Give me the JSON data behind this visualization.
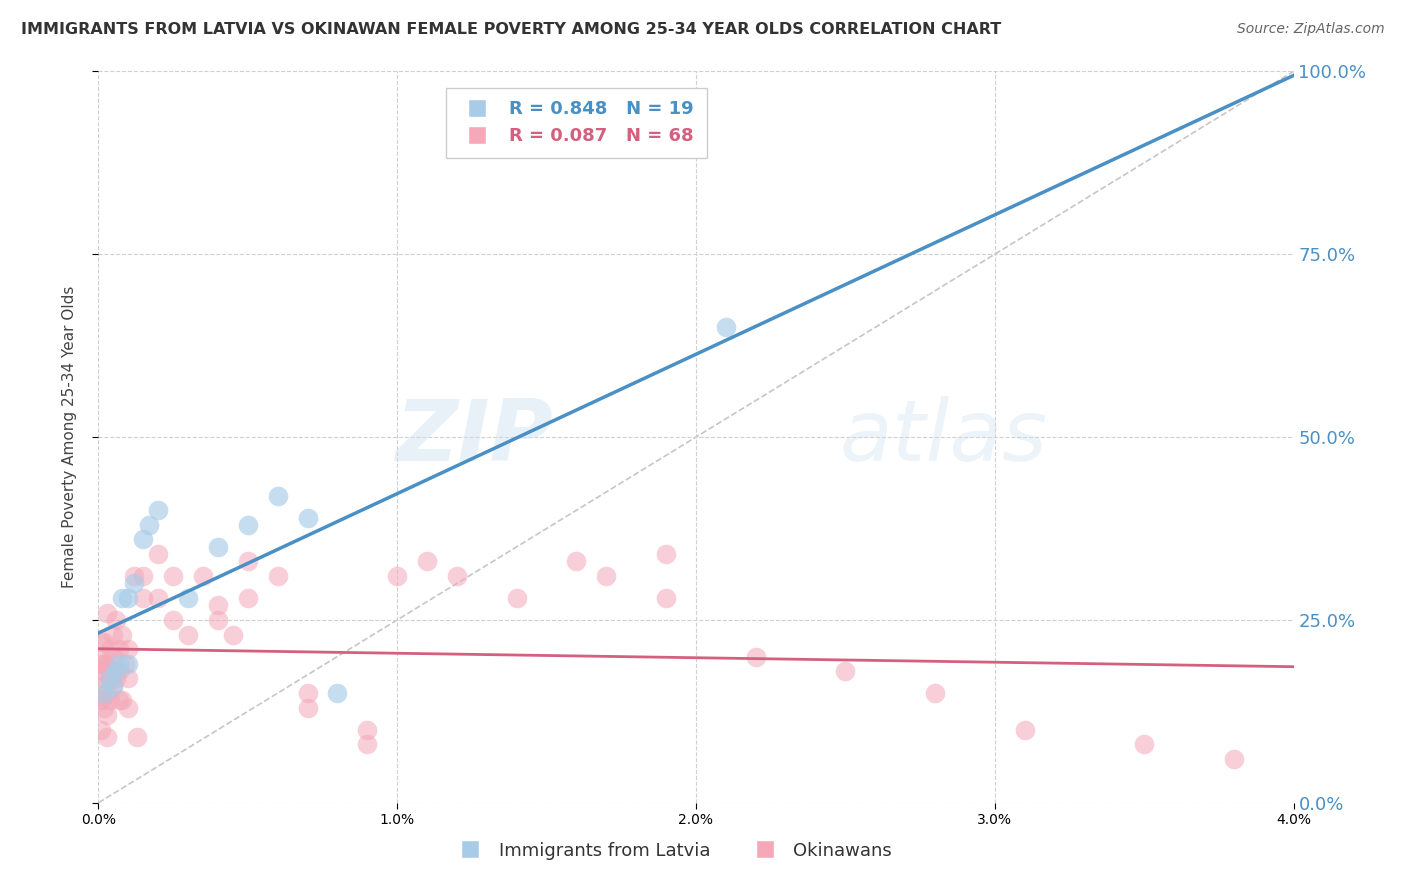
{
  "title": "IMMIGRANTS FROM LATVIA VS OKINAWAN FEMALE POVERTY AMONG 25-34 YEAR OLDS CORRELATION CHART",
  "source": "Source: ZipAtlas.com",
  "ylabel_left": "Female Poverty Among 25-34 Year Olds",
  "legend_label1": "Immigrants from Latvia",
  "legend_label2": "Okinawans",
  "R1": 0.848,
  "N1": 19,
  "R2": 0.087,
  "N2": 68,
  "xlim": [
    0.0,
    0.04
  ],
  "ylim": [
    0.0,
    1.0
  ],
  "xticks": [
    0.0,
    0.01,
    0.02,
    0.03,
    0.04
  ],
  "yticks_right": [
    0.0,
    0.25,
    0.5,
    0.75,
    1.0
  ],
  "color_blue": "#a8cce8",
  "color_pink": "#f4a8b8",
  "color_line_blue": "#4a90c4",
  "color_line_pink": "#d46080",
  "color_diag": "#c0c0c0",
  "color_right_axis": "#4a90c4",
  "color_title": "#333333",
  "color_source": "#666666",
  "watermark_zip": "ZIP",
  "watermark_atlas": "atlas",
  "blue_scatter_x": [
    0.0002,
    0.0004,
    0.0005,
    0.0006,
    0.0007,
    0.0008,
    0.001,
    0.001,
    0.0012,
    0.0015,
    0.0017,
    0.002,
    0.003,
    0.004,
    0.005,
    0.006,
    0.007,
    0.008,
    0.021
  ],
  "blue_scatter_y": [
    0.15,
    0.17,
    0.16,
    0.18,
    0.19,
    0.28,
    0.19,
    0.28,
    0.3,
    0.36,
    0.38,
    0.4,
    0.28,
    0.35,
    0.38,
    0.42,
    0.39,
    0.15,
    0.65
  ],
  "pink_scatter_x": [
    5e-05,
    5e-05,
    0.0001,
    0.0001,
    0.0001,
    0.0001,
    0.0001,
    0.00015,
    0.0002,
    0.0002,
    0.0002,
    0.0002,
    0.0003,
    0.0003,
    0.0003,
    0.0003,
    0.0003,
    0.0004,
    0.0004,
    0.0004,
    0.0005,
    0.0005,
    0.0005,
    0.0006,
    0.0006,
    0.0007,
    0.0007,
    0.0007,
    0.0008,
    0.0008,
    0.0009,
    0.001,
    0.001,
    0.001,
    0.0012,
    0.0013,
    0.0015,
    0.0015,
    0.002,
    0.002,
    0.0025,
    0.0025,
    0.003,
    0.0035,
    0.004,
    0.004,
    0.0045,
    0.005,
    0.005,
    0.006,
    0.007,
    0.007,
    0.009,
    0.009,
    0.01,
    0.011,
    0.012,
    0.014,
    0.016,
    0.017,
    0.019,
    0.019,
    0.022,
    0.025,
    0.028,
    0.031,
    0.035,
    0.038
  ],
  "pink_scatter_y": [
    0.19,
    0.14,
    0.2,
    0.17,
    0.14,
    0.1,
    0.22,
    0.18,
    0.19,
    0.16,
    0.13,
    0.22,
    0.26,
    0.19,
    0.15,
    0.12,
    0.09,
    0.21,
    0.17,
    0.14,
    0.23,
    0.2,
    0.16,
    0.25,
    0.17,
    0.21,
    0.18,
    0.14,
    0.23,
    0.14,
    0.19,
    0.21,
    0.17,
    0.13,
    0.31,
    0.09,
    0.31,
    0.28,
    0.34,
    0.28,
    0.31,
    0.25,
    0.23,
    0.31,
    0.27,
    0.25,
    0.23,
    0.28,
    0.33,
    0.31,
    0.15,
    0.13,
    0.1,
    0.08,
    0.31,
    0.33,
    0.31,
    0.28,
    0.33,
    0.31,
    0.28,
    0.34,
    0.2,
    0.18,
    0.15,
    0.1,
    0.08,
    0.06
  ]
}
